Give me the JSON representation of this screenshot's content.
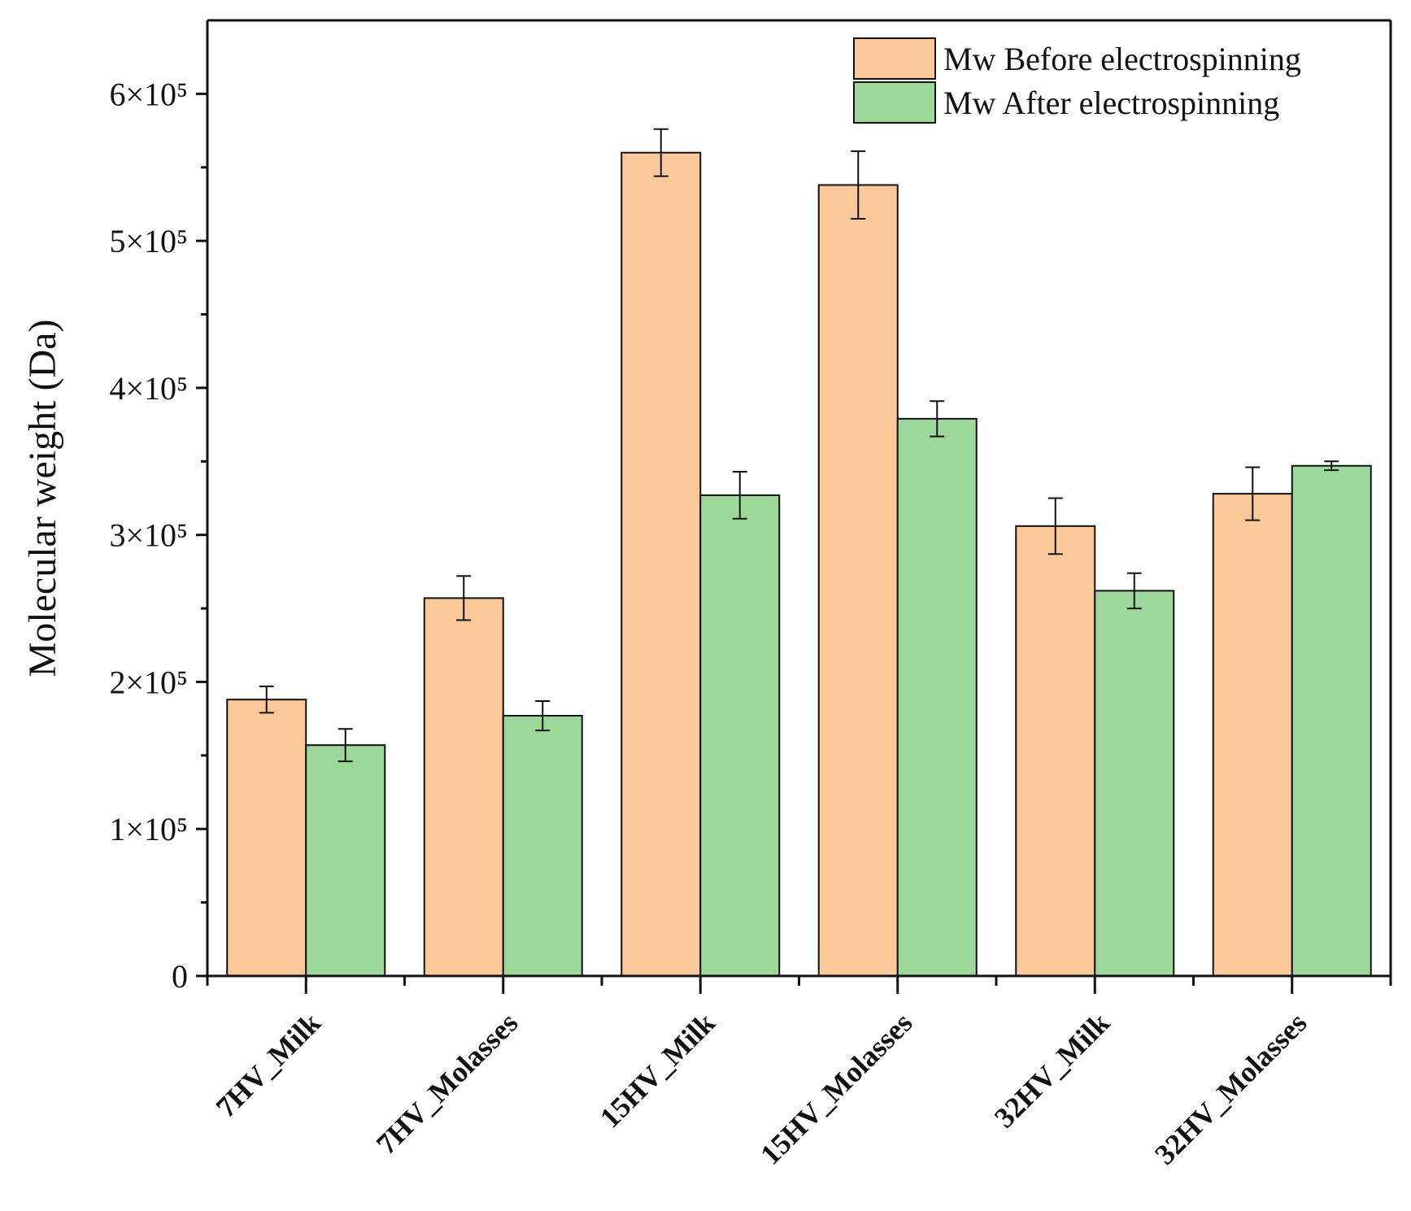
{
  "colors": {
    "before": "#fbc89a",
    "after": "#9dd89b"
  },
  "chart_data": {
    "type": "bar",
    "title": "",
    "xlabel": "",
    "ylabel": "Molecular weight (Da)",
    "ylim": [
      0,
      650000
    ],
    "yticks": [
      {
        "value": 0,
        "label": "0"
      },
      {
        "value": 100000,
        "label": "1×10⁵"
      },
      {
        "value": 200000,
        "label": "2×10⁵"
      },
      {
        "value": 300000,
        "label": "3×10⁵"
      },
      {
        "value": 400000,
        "label": "4×10⁵"
      },
      {
        "value": 500000,
        "label": "5×10⁵"
      },
      {
        "value": 600000,
        "label": "6×10⁵"
      }
    ],
    "categories": [
      "7HV_Milk",
      "7HV_Molasses",
      "15HV_Milk",
      "15HV_Molasses",
      "32HV_Milk",
      "32HV_Molasses"
    ],
    "series": [
      {
        "name": "Mw Before electrospinning",
        "color_key": "before",
        "values": [
          188000,
          257000,
          560000,
          538000,
          306000,
          328000
        ],
        "errors": [
          9000,
          15000,
          16000,
          23000,
          19000,
          18000
        ]
      },
      {
        "name": "Mw After electrospinning",
        "color_key": "after",
        "values": [
          157000,
          177000,
          327000,
          379000,
          262000,
          347000
        ],
        "errors": [
          11000,
          10000,
          16000,
          12000,
          12000,
          3000
        ]
      }
    ],
    "legend_position": "top-right",
    "grid": false
  }
}
